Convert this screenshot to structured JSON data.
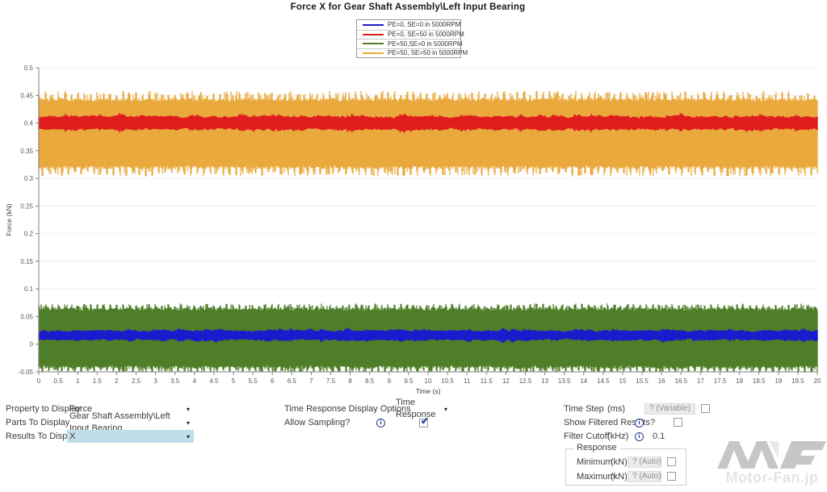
{
  "chart_data": {
    "type": "area",
    "title": "Force X for Gear Shaft Assembly\\Left Input Bearing",
    "xlabel": "Time (s)",
    "ylabel": "Force (kN)",
    "xlim": [
      0,
      20
    ],
    "ylim": [
      -0.05,
      0.5
    ],
    "xtick_step": 0.5,
    "ytick_step": 0.05,
    "grid": "horizontal-light",
    "legend_position": "top-center",
    "series": [
      {
        "name": "PE=0, SE=0 in 5000RPM",
        "color": "#1B1BCD",
        "kind": "noise-band",
        "center": 0.016,
        "amp_min": 0.005,
        "amp_max": 0.012
      },
      {
        "name": "PE=0, SE=50 in 5000RPM",
        "color": "#E01D1D",
        "kind": "noise-band",
        "center": 0.4,
        "amp_min": 0.007,
        "amp_max": 0.016
      },
      {
        "name": "PE=50,SE=0 in 5000RPM",
        "color": "#4E7E27",
        "kind": "comb-band",
        "top_base": 0.064,
        "top_spike": 0.0735,
        "bottom_base": -0.042,
        "bottom_spike": -0.0535
      },
      {
        "name": "PE=50, SE=50 in 5000RPM",
        "color": "#EAA93C",
        "kind": "comb-band",
        "top_base": 0.4425,
        "top_spike": 0.458,
        "bottom_base": 0.3195,
        "bottom_spike": 0.3035
      }
    ]
  },
  "controls": {
    "left": [
      {
        "label": "Property to Display",
        "value": "Force"
      },
      {
        "label": "Parts To Display",
        "value": "Gear Shaft Assembly\\Left Input Bearing"
      },
      {
        "label": "Results To Display",
        "value": "X"
      }
    ],
    "middle": {
      "display_options_label": "Time Response Display Options",
      "display_options_value": "Time Response",
      "allow_sampling_label": "Allow Sampling?",
      "allow_sampling_checked": true
    },
    "right": {
      "time_step_label": "Time Step",
      "time_step_unit": "(ms)",
      "time_step_value": "? (Variable)",
      "time_step_checked": false,
      "show_filtered_label": "Show Filtered Results?",
      "show_filtered_checked": false,
      "filter_cutoff_label": "Filter Cutoff",
      "filter_cutoff_unit": "(kHz)",
      "filter_cutoff_value": "0.1",
      "response_title": "Response",
      "response_rows": [
        {
          "label": "Minimum",
          "unit": "(kN)",
          "value": "? (Auto)",
          "checked": false
        },
        {
          "label": "Maximum",
          "unit": "(kN)",
          "value": "? (Auto)",
          "checked": false
        }
      ]
    }
  },
  "watermark": {
    "text": "Motor-Fan.jp"
  }
}
